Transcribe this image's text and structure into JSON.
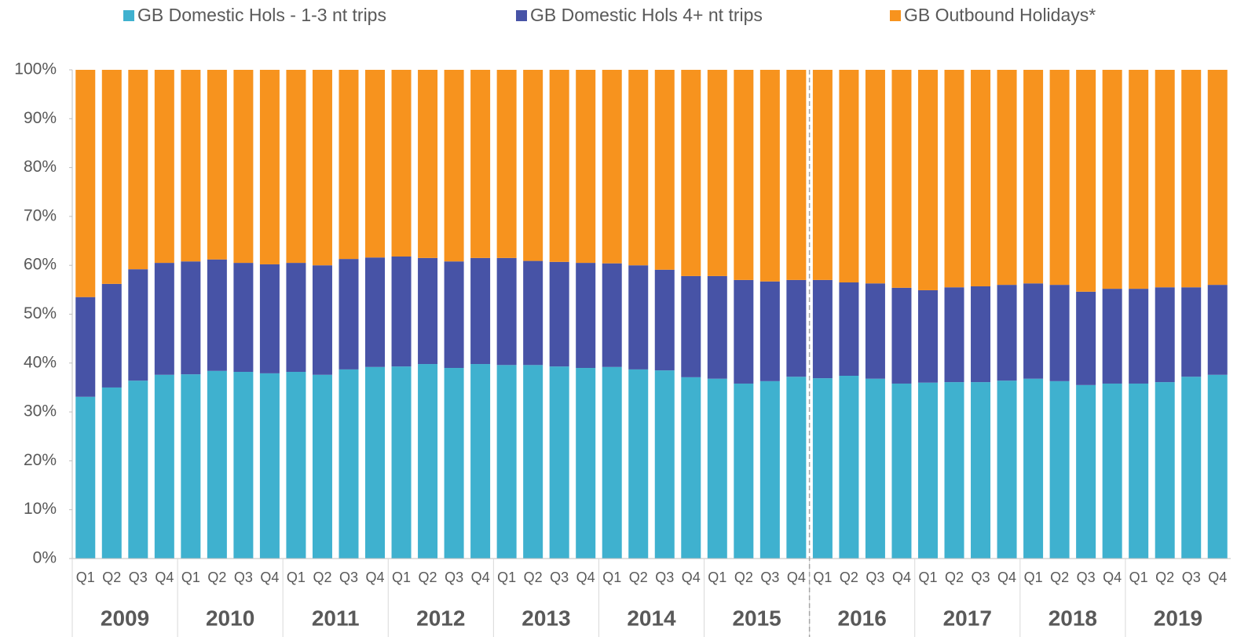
{
  "chart_data": {
    "type": "stacked_bar",
    "categories": [
      "Q1",
      "Q2",
      "Q3",
      "Q4",
      "Q1",
      "Q2",
      "Q3",
      "Q4",
      "Q1",
      "Q2",
      "Q3",
      "Q4",
      "Q1",
      "Q2",
      "Q3",
      "Q4",
      "Q1",
      "Q2",
      "Q3",
      "Q4",
      "Q1",
      "Q2",
      "Q3",
      "Q4",
      "Q1",
      "Q2",
      "Q3",
      "Q4",
      "Q1",
      "Q2",
      "Q3",
      "Q4",
      "Q1",
      "Q2",
      "Q3",
      "Q4",
      "Q1",
      "Q2",
      "Q3",
      "Q4",
      "Q1",
      "Q2",
      "Q3",
      "Q4"
    ],
    "years": [
      "2009",
      "2010",
      "2011",
      "2012",
      "2013",
      "2014",
      "2015",
      "2016",
      "2017",
      "2018",
      "2019"
    ],
    "series": [
      {
        "name": "GB Domestic Hols - 1-3 nt trips",
        "color": "#3fb1cf",
        "values": [
          33.1,
          35.0,
          36.4,
          37.6,
          37.7,
          38.4,
          38.2,
          37.9,
          38.2,
          37.6,
          38.7,
          39.2,
          39.3,
          39.8,
          39.0,
          39.8,
          39.6,
          39.6,
          39.3,
          39.0,
          39.2,
          38.7,
          38.5,
          37.1,
          36.8,
          35.8,
          36.3,
          37.2,
          36.9,
          37.4,
          36.8,
          35.8,
          36.0,
          36.1,
          36.1,
          36.4,
          36.8,
          36.3,
          35.5,
          35.8,
          35.8,
          36.1,
          37.2,
          37.6
        ]
      },
      {
        "name": "GB Domestic Hols 4+ nt trips",
        "color": "#4753a6",
        "values": [
          20.4,
          21.2,
          22.8,
          22.9,
          23.1,
          22.8,
          22.3,
          22.3,
          22.3,
          22.4,
          22.6,
          22.4,
          22.5,
          21.7,
          21.8,
          21.7,
          21.9,
          21.3,
          21.4,
          21.5,
          21.2,
          21.3,
          20.6,
          20.7,
          21.0,
          21.2,
          20.4,
          19.8,
          20.1,
          19.1,
          19.5,
          19.6,
          18.9,
          19.4,
          19.6,
          19.6,
          19.5,
          19.7,
          19.1,
          19.4,
          19.4,
          19.4,
          18.3,
          18.4
        ]
      },
      {
        "name": "GB Outbound Holidays*",
        "color": "#f7931e",
        "values": [
          46.5,
          43.8,
          40.8,
          39.5,
          39.2,
          38.8,
          39.5,
          39.8,
          39.5,
          40.0,
          38.7,
          38.4,
          38.2,
          38.5,
          39.2,
          38.5,
          38.5,
          39.1,
          39.3,
          39.5,
          39.6,
          40.0,
          40.9,
          42.2,
          42.2,
          43.0,
          43.3,
          43.0,
          43.0,
          43.5,
          43.7,
          44.6,
          45.1,
          44.5,
          44.3,
          44.0,
          43.7,
          44.0,
          45.4,
          44.8,
          44.8,
          44.5,
          44.5,
          44.0
        ]
      }
    ],
    "ylim": [
      0,
      100
    ],
    "yticks": [
      {
        "value": 0,
        "label": "0%"
      },
      {
        "value": 10,
        "label": "10%"
      },
      {
        "value": 20,
        "label": "20%"
      },
      {
        "value": 30,
        "label": "30%"
      },
      {
        "value": 40,
        "label": "40%"
      },
      {
        "value": 50,
        "label": "50%"
      },
      {
        "value": 60,
        "label": "60%"
      },
      {
        "value": 70,
        "label": "70%"
      },
      {
        "value": 80,
        "label": "80%"
      },
      {
        "value": 90,
        "label": "90%"
      },
      {
        "value": 100,
        "label": "100%"
      }
    ]
  }
}
